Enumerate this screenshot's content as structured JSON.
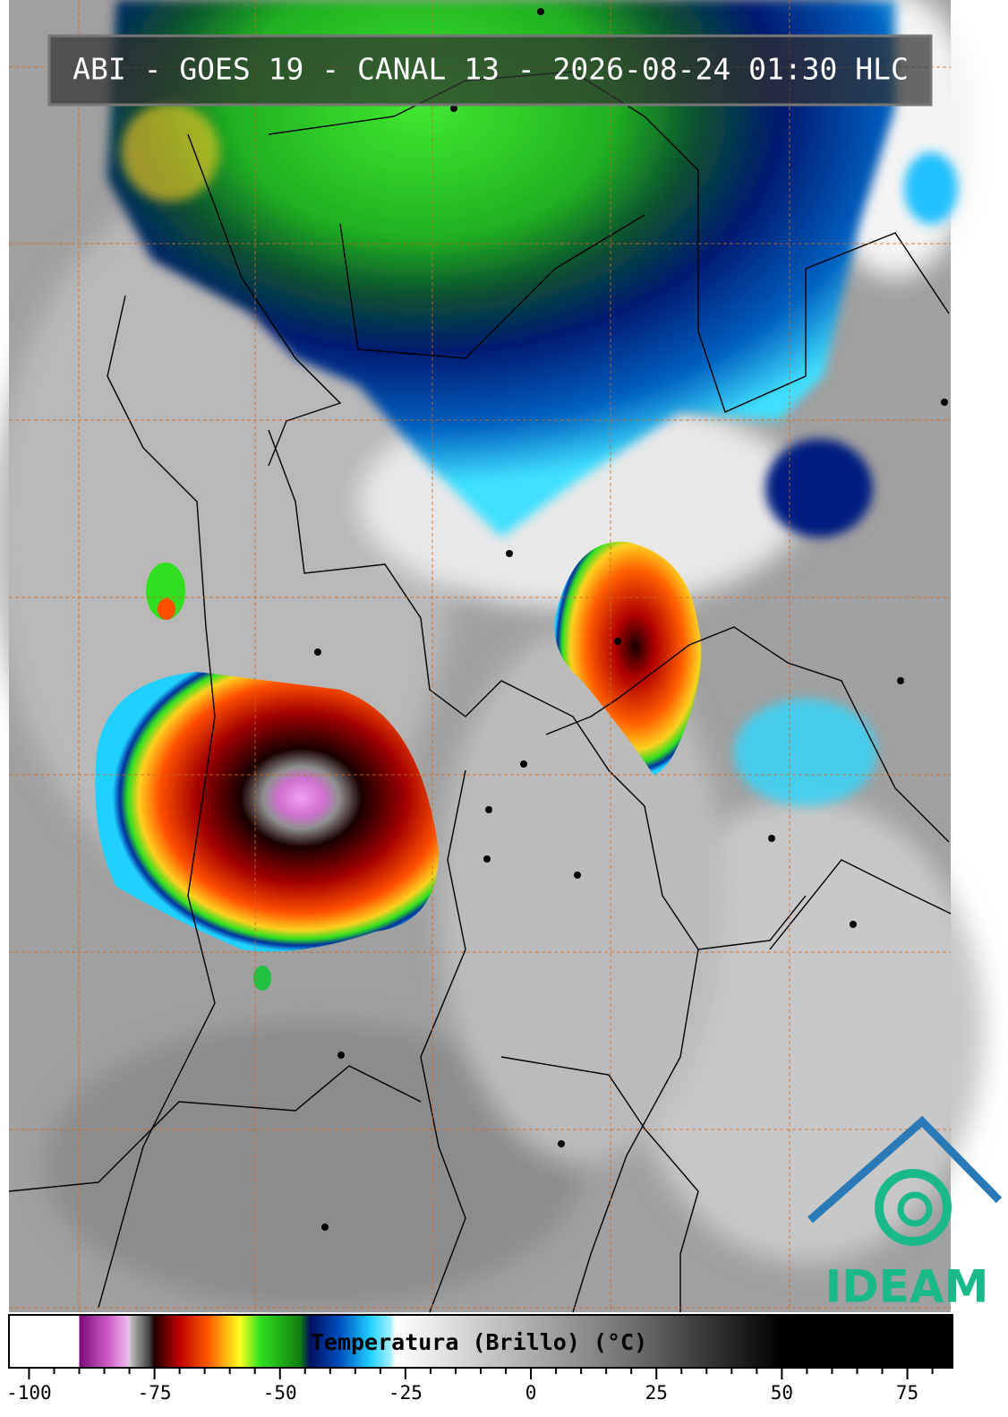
{
  "header": {
    "title": "ABI - GOES 19 - CANAL 13 - 2026-08-24 01:30 HLC"
  },
  "colorbar": {
    "label": "Temperatura (Brillo) (°C)",
    "xlim": [
      -104,
      84
    ],
    "xticks": [
      -100,
      -75,
      -50,
      -25,
      0,
      25,
      50,
      75
    ],
    "minor_xticks": [
      -95,
      -90,
      -85,
      -80,
      -70,
      -65,
      -60,
      -55,
      -45,
      -40,
      -35,
      -30,
      -20,
      -15,
      -10,
      -5,
      5,
      10,
      15,
      20,
      30,
      35,
      40,
      45,
      55,
      60,
      65,
      70,
      80
    ],
    "stops": [
      {
        "value": -104,
        "color": "#ffffff"
      },
      {
        "value": -90,
        "color": "#ffffff"
      },
      {
        "value": -90,
        "color": "#7a0a7a"
      },
      {
        "value": -84,
        "color": "#d060c8"
      },
      {
        "value": -80,
        "color": "#f0c0f0"
      },
      {
        "value": -80,
        "color": "#c8c8c8"
      },
      {
        "value": -76,
        "color": "#404040"
      },
      {
        "value": -75,
        "color": "#200000"
      },
      {
        "value": -70,
        "color": "#c00000"
      },
      {
        "value": -64,
        "color": "#ff6000"
      },
      {
        "value": -58,
        "color": "#ffff20"
      },
      {
        "value": -54,
        "color": "#30e020"
      },
      {
        "value": -46,
        "color": "#108010"
      },
      {
        "value": -44,
        "color": "#001060"
      },
      {
        "value": -38,
        "color": "#0050c0"
      },
      {
        "value": -32,
        "color": "#20d0ff"
      },
      {
        "value": -28,
        "color": "#a0f0ff"
      },
      {
        "value": -27,
        "color": "#ffffff"
      },
      {
        "value": 20,
        "color": "#707070"
      },
      {
        "value": 50,
        "color": "#000000"
      },
      {
        "value": 84,
        "color": "#000000"
      }
    ]
  },
  "logo": {
    "text": "IDEAM"
  }
}
